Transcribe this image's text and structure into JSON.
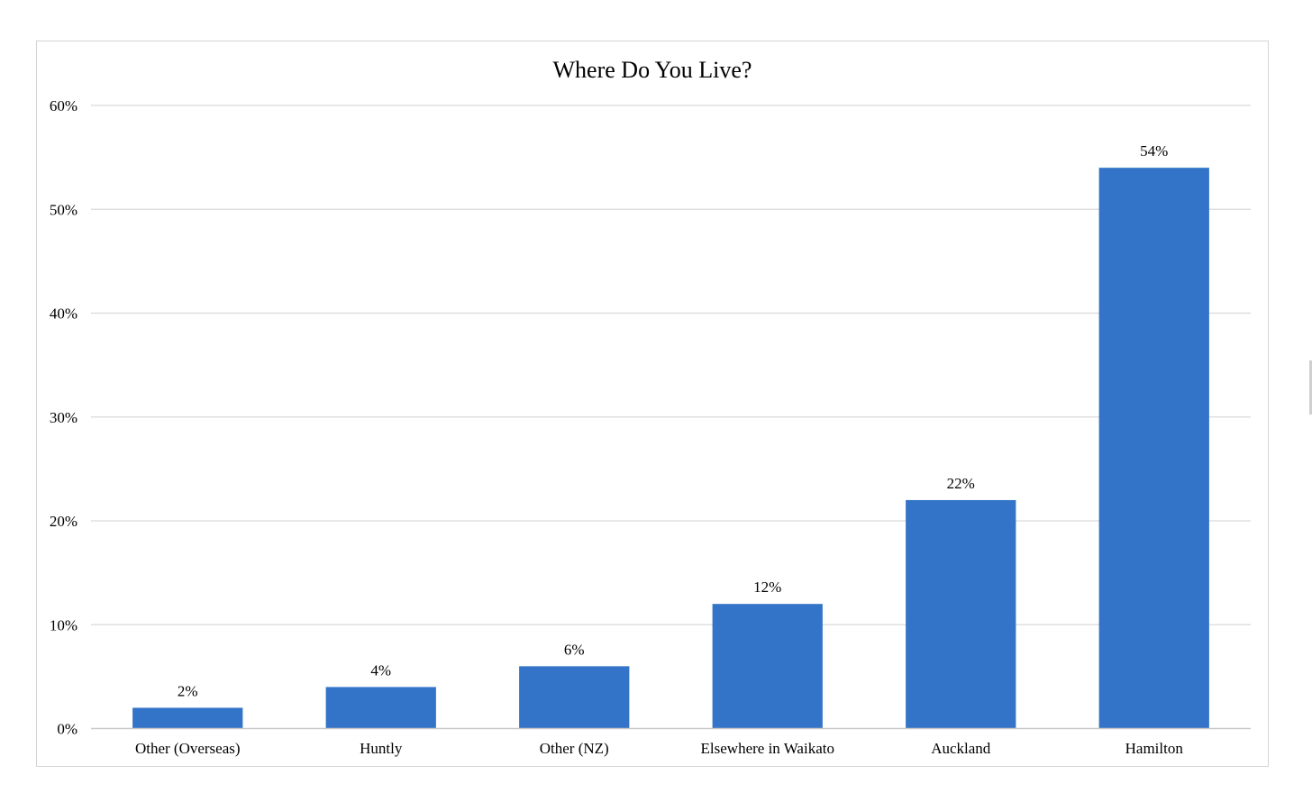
{
  "chart_data": {
    "type": "bar",
    "title": "Where Do You Live?",
    "xlabel": "",
    "ylabel": "",
    "categories": [
      "Other (Overseas)",
      "Huntly",
      "Other (NZ)",
      "Elsewhere in Waikato",
      "Auckland",
      "Hamilton"
    ],
    "values": [
      2,
      4,
      6,
      12,
      22,
      54
    ],
    "value_labels": [
      "2%",
      "4%",
      "6%",
      "12%",
      "22%",
      "54%"
    ],
    "ylim": [
      0,
      60
    ],
    "y_ticks": [
      0,
      10,
      20,
      30,
      40,
      50,
      60
    ],
    "y_tick_labels": [
      "0%",
      "10%",
      "20%",
      "30%",
      "40%",
      "50%",
      "60%"
    ],
    "grid": true,
    "legend": "none",
    "colors": {
      "bar": "#3374c8",
      "grid": "#d9d9d9",
      "axis": "#c8c8c8",
      "text": "#000000"
    }
  }
}
